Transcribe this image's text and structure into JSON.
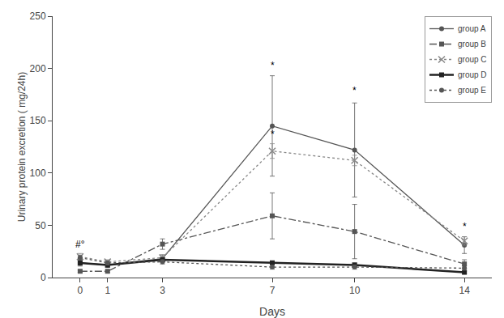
{
  "chart_data": {
    "type": "line",
    "x": [
      0,
      1,
      3,
      7,
      10,
      14
    ],
    "series": [
      {
        "name": "group A",
        "color": "#555555",
        "marker": "circle",
        "line_style": "solid",
        "values": [
          14,
          12,
          18,
          145,
          122,
          31
        ],
        "errors": [
          3,
          2,
          3,
          48,
          45,
          8
        ]
      },
      {
        "name": "group B",
        "color": "#555555",
        "marker": "square",
        "line_style": "dashdot",
        "values": [
          6,
          6,
          32,
          59,
          44,
          13
        ],
        "errors": [
          1,
          1,
          5,
          22,
          26,
          4
        ]
      },
      {
        "name": "group C",
        "color": "#888888",
        "marker": "x",
        "line_style": "dotted",
        "values": [
          20,
          15,
          19,
          121,
          112,
          35
        ],
        "errors": [
          3,
          2,
          3,
          7,
          5,
          4
        ]
      },
      {
        "name": "group D",
        "color": "#222222",
        "marker": "square",
        "line_style": "solid",
        "values": [
          14,
          12,
          17,
          14,
          12,
          5
        ],
        "errors": [
          2,
          2,
          2,
          2,
          2,
          1
        ]
      },
      {
        "name": "group E",
        "color": "#555555",
        "marker": "circle",
        "line_style": "dotted",
        "values": [
          19,
          14,
          15,
          10,
          10,
          9
        ],
        "errors": [
          2,
          2,
          2,
          2,
          2,
          2
        ]
      }
    ],
    "xlabel": "Days",
    "ylabel": "Urinary protein excretion ( mg/24h)",
    "xlim": [
      -1,
      15
    ],
    "xticks": [
      0,
      1,
      3,
      7,
      10,
      14
    ],
    "ylim": [
      0,
      250
    ],
    "yticks": [
      0,
      50,
      100,
      150,
      200,
      250
    ],
    "annotations": [
      {
        "text": "#°",
        "x": 0,
        "y": 25
      },
      {
        "text": "*",
        "x": 7,
        "y": 196
      },
      {
        "text": "*",
        "x": 7,
        "y": 130
      },
      {
        "text": "*",
        "x": 10,
        "y": 172
      },
      {
        "text": "*",
        "x": 14,
        "y": 42
      }
    ],
    "grid": false,
    "legend": "upper right"
  }
}
